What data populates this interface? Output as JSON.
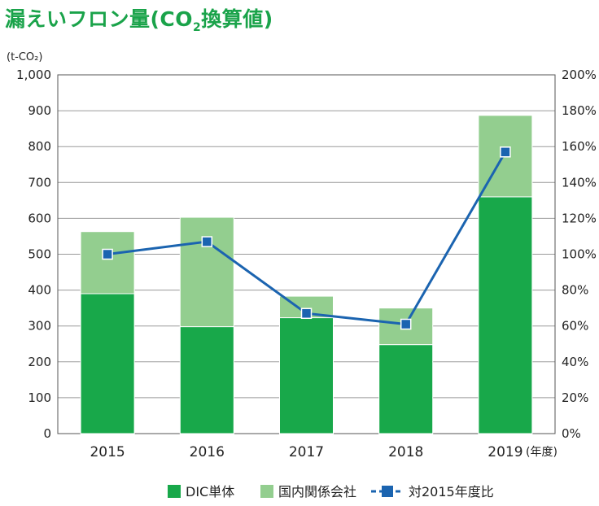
{
  "title": {
    "main": "漏えいフロン量(CO",
    "sub": "2",
    "tail": "換算値)"
  },
  "chart_data": {
    "type": "bar",
    "categories": [
      "2015",
      "2016",
      "2017",
      "2018",
      "2019"
    ],
    "xlabel": "(年度)",
    "y_left": {
      "label": "(t-CO₂)",
      "min": 0,
      "max": 1000,
      "ticks": [
        "0",
        "100",
        "200",
        "300",
        "400",
        "500",
        "600",
        "700",
        "800",
        "900",
        "1,000"
      ]
    },
    "y_right": {
      "min": 0,
      "max": 200,
      "ticks": [
        "0%",
        "20%",
        "40%",
        "60%",
        "80%",
        "100%",
        "120%",
        "140%",
        "160%",
        "180%",
        "200%"
      ]
    },
    "series": [
      {
        "name": "DIC単体",
        "type": "bar",
        "stack": "total",
        "axis": "left",
        "color": "#18a84a",
        "values": [
          390,
          298,
          323,
          248,
          660
        ]
      },
      {
        "name": "国内関係会社",
        "type": "bar",
        "stack": "total",
        "axis": "left",
        "color": "#93ce8f",
        "values": [
          173,
          305,
          60,
          102,
          227
        ]
      },
      {
        "name": "対2015年度比",
        "type": "line",
        "axis": "right",
        "color": "#1b64b0",
        "values": [
          100,
          107,
          67,
          61,
          157
        ]
      }
    ],
    "grid": true,
    "legend_position": "bottom"
  }
}
